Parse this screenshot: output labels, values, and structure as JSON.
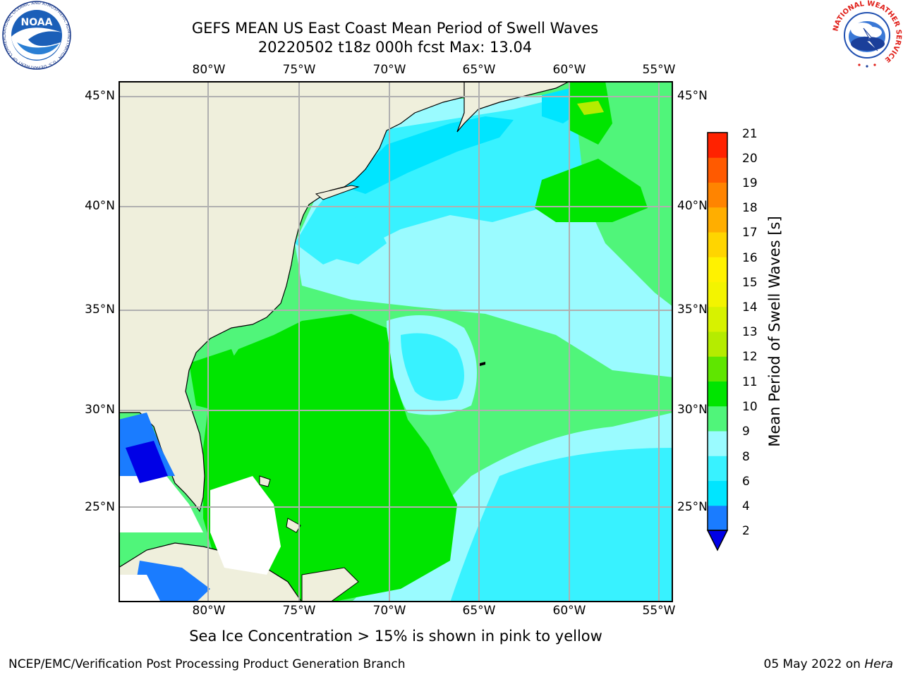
{
  "title": {
    "line1": "GEFS MEAN US East Coast Mean Period of Swell Waves",
    "line2": "20220502 t18z 000h fcst   Max: 13.04"
  },
  "map": {
    "lon_labels": [
      "80°W",
      "75°W",
      "70°W",
      "65°W",
      "60°W",
      "55°W"
    ],
    "lat_labels": [
      "45°N",
      "40°N",
      "35°N",
      "30°N",
      "25°N"
    ],
    "colors": {
      "land": "#efefdc",
      "grid": "#b0b0b0",
      "no_data": "#ffffff"
    }
  },
  "colorbar": {
    "label": "Mean Period of Swell Waves [s]",
    "ticks": [
      "2",
      "4",
      "6",
      "8",
      "9",
      "10",
      "11",
      "12",
      "13",
      "14",
      "15",
      "16",
      "17",
      "18",
      "19",
      "20",
      "21"
    ],
    "colors": [
      "#1a7cff",
      "#00e5ff",
      "#38f2ff",
      "#9afbff",
      "#50f57a",
      "#00e500",
      "#5fe600",
      "#b5ec00",
      "#d7f200",
      "#f3f400",
      "#fff200",
      "#ffd500",
      "#ffae00",
      "#ff8400",
      "#ff5a00",
      "#ff2200"
    ],
    "under_color": "#0000e6"
  },
  "ice_note": "Sea Ice Concentration > 15% is shown in pink to yellow",
  "footer": {
    "left": "NCEP/EMC/Verification Post Processing Product Generation Branch",
    "date": "05 May 2022 on ",
    "machine": "Hera"
  },
  "logos": {
    "noaa_text": "NOAA",
    "noaa_ring_text": "NATIONAL OCEANIC AND ATMOSPHERIC ADMINISTRATION · U.S. DEPARTMENT OF COMMERCE",
    "nws_ring_text": "NATIONAL WEATHER SERVICE"
  }
}
